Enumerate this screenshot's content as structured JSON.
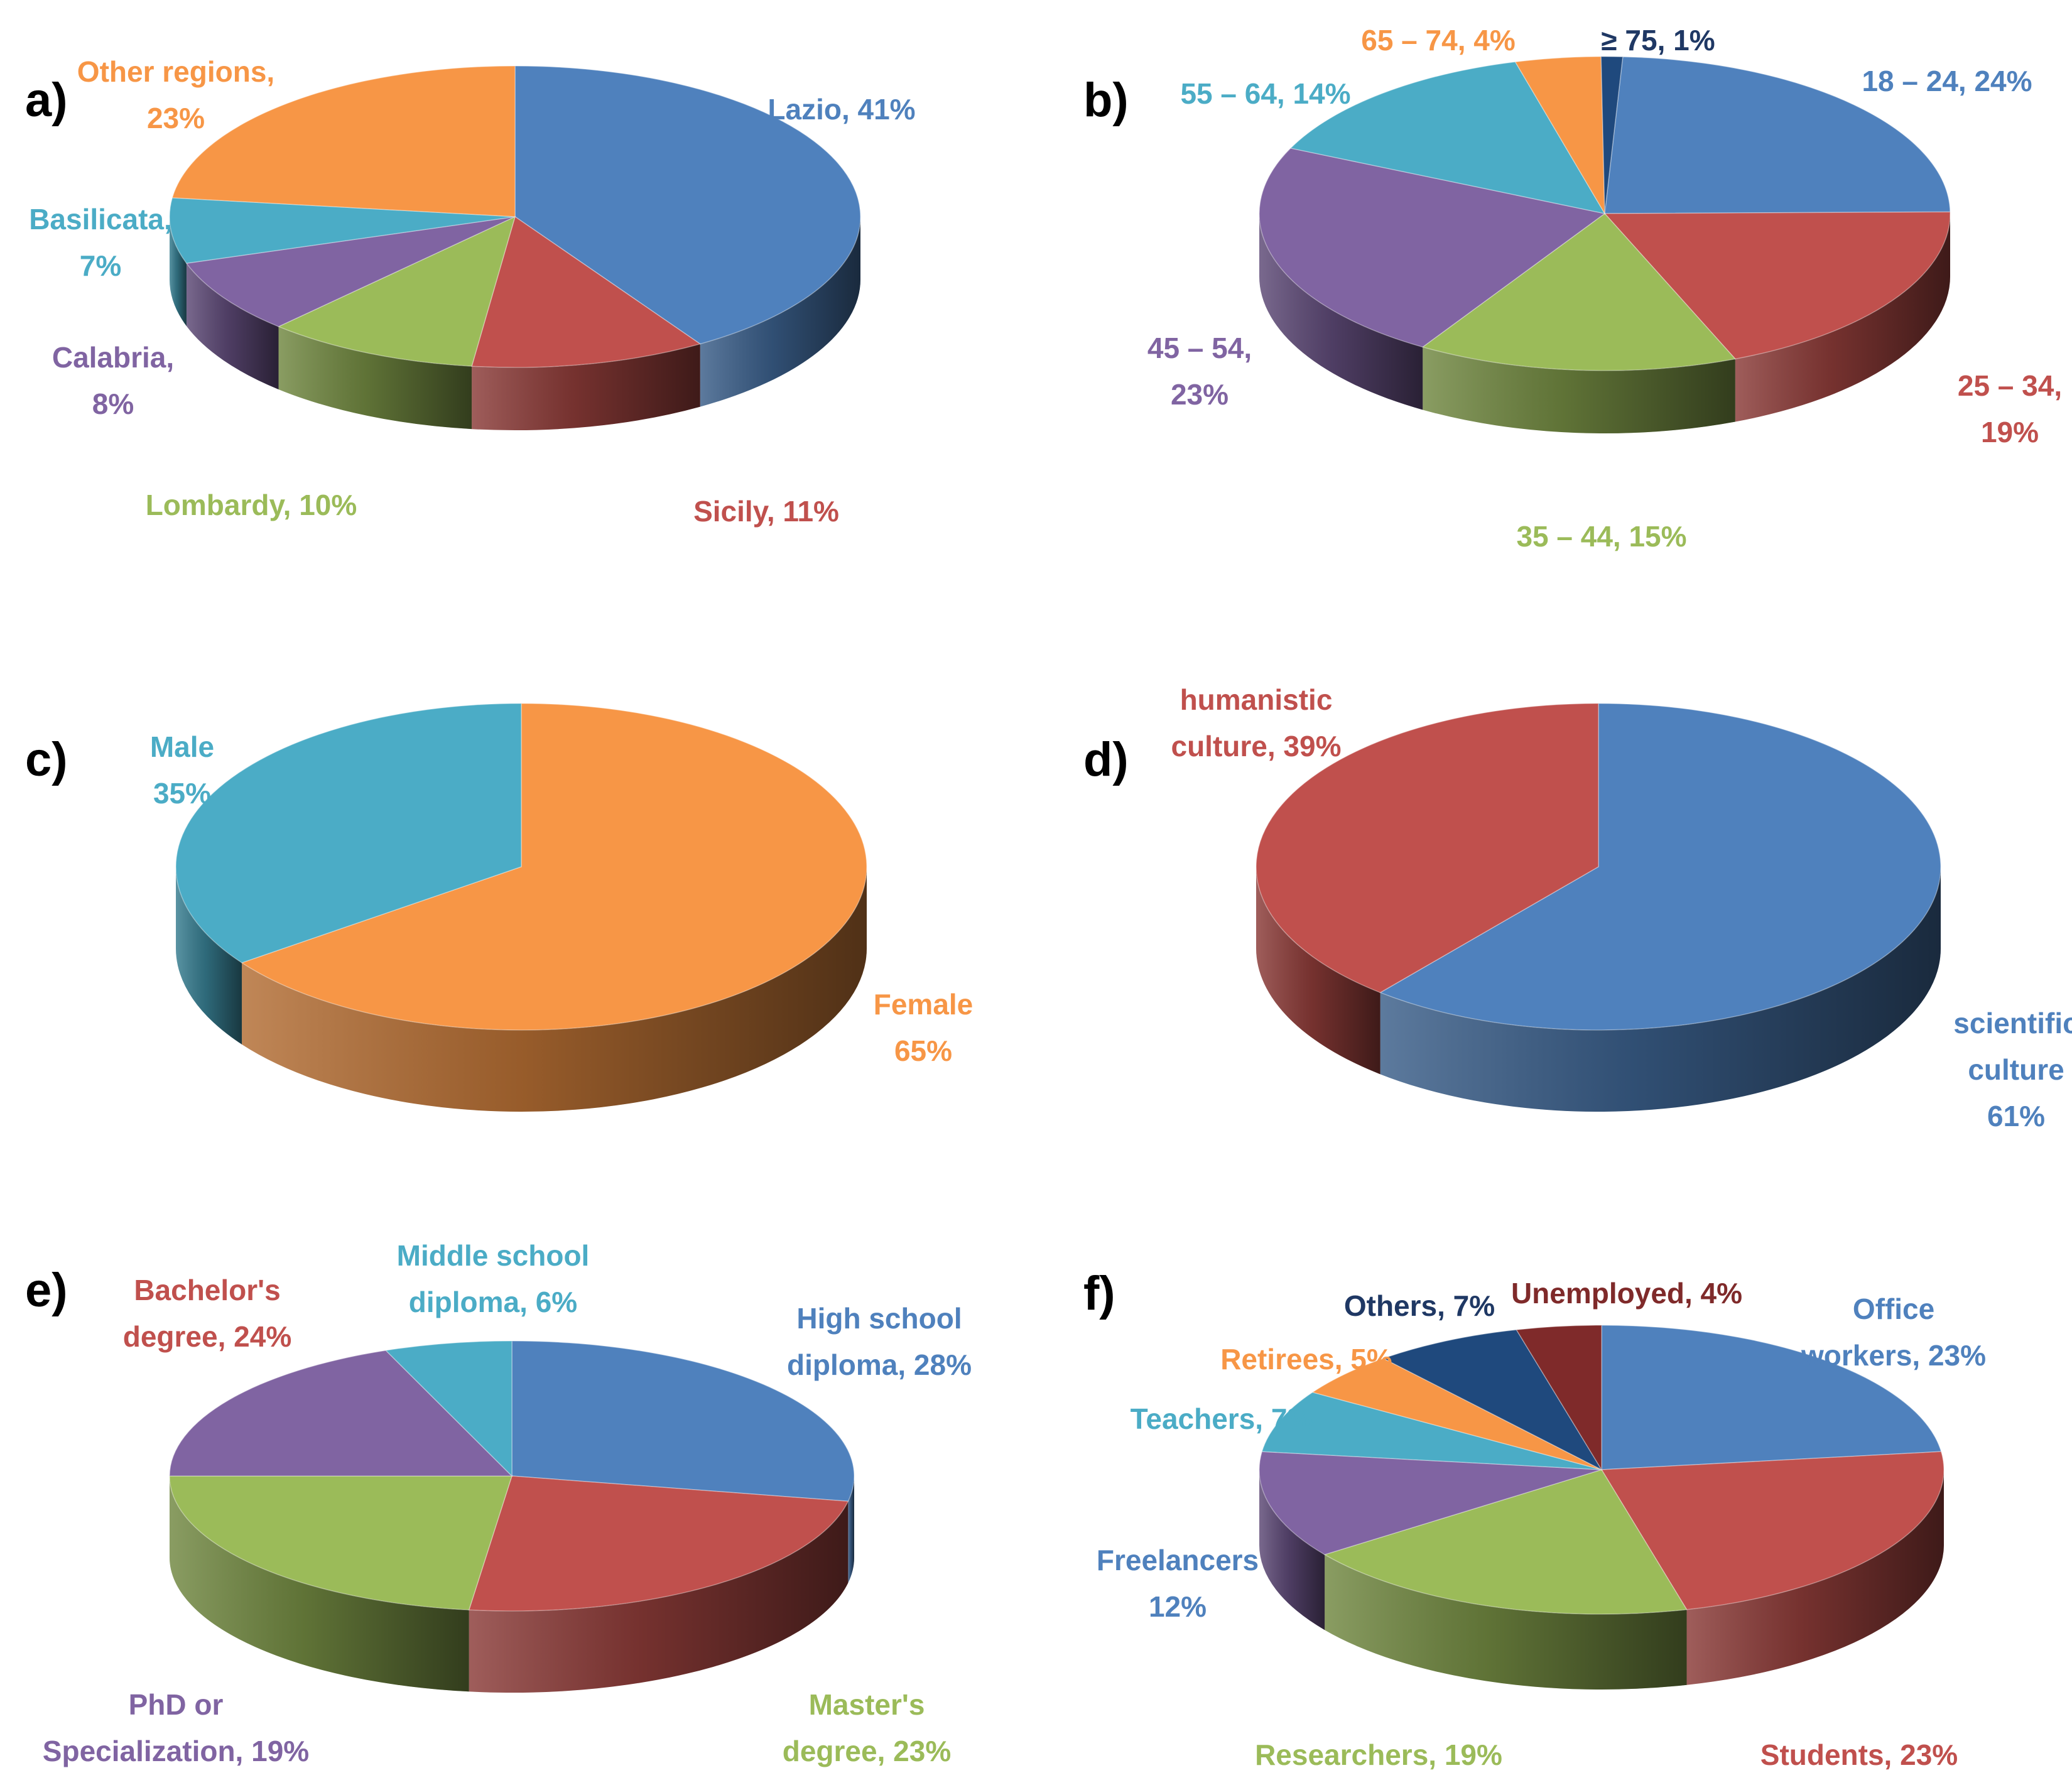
{
  "colors": {
    "blue": "#4F81BD",
    "red": "#C0504D",
    "green": "#9BBB59",
    "purple": "#8064A2",
    "cyan": "#4BACC6",
    "orange": "#F79646",
    "navy": "#1F497D",
    "darkred": "#7F2A2A"
  },
  "chart_data": [
    {
      "type": "pie",
      "panel_label": "a)",
      "slices": [
        {
          "name": "Lazio",
          "value": 41,
          "label": [
            "Lazio, 41%"
          ],
          "color": "blue"
        },
        {
          "name": "Sicily",
          "value": 11,
          "label": [
            "Sicily, 11%"
          ],
          "color": "red"
        },
        {
          "name": "Lombardy",
          "value": 10,
          "label": [
            "Lombardy, 10%"
          ],
          "color": "green"
        },
        {
          "name": "Calabria",
          "value": 8,
          "label": [
            "Calabria,",
            "8%"
          ],
          "color": "purple"
        },
        {
          "name": "Basilicata",
          "value": 7,
          "label": [
            "Basilicata,",
            "7%"
          ],
          "color": "cyan"
        },
        {
          "name": "Other regions",
          "value": 23,
          "label": [
            "Other regions,",
            "23%"
          ],
          "color": "orange"
        }
      ]
    },
    {
      "type": "pie",
      "panel_label": "b)",
      "slices": [
        {
          "name": "18 – 24",
          "value": 24,
          "label": [
            "18 – 24, 24%"
          ],
          "color": "blue"
        },
        {
          "name": "25 – 34",
          "value": 19,
          "label": [
            "25 – 34,",
            "19%"
          ],
          "color": "red"
        },
        {
          "name": "35 – 44",
          "value": 15,
          "label": [
            "35 – 44, 15%"
          ],
          "color": "green"
        },
        {
          "name": "45 – 54",
          "value": 23,
          "label": [
            "45 – 54,",
            "23%"
          ],
          "color": "purple"
        },
        {
          "name": "55 – 64",
          "value": 14,
          "label": [
            "55 – 64, 14%"
          ],
          "color": "cyan"
        },
        {
          "name": "65 – 74",
          "value": 4,
          "label": [
            "65 – 74, 4%"
          ],
          "color": "orange"
        },
        {
          "name": "≥ 75",
          "value": 1,
          "label": [
            "≥ 75, 1%"
          ],
          "color": "navy"
        }
      ]
    },
    {
      "type": "pie",
      "panel_label": "c)",
      "slices": [
        {
          "name": "Female",
          "value": 65,
          "label": [
            "Female",
            "65%"
          ],
          "color": "orange"
        },
        {
          "name": "Male",
          "value": 35,
          "label": [
            "Male",
            "35%"
          ],
          "color": "cyan"
        }
      ]
    },
    {
      "type": "pie",
      "panel_label": "d)",
      "slices": [
        {
          "name": "scientific culture",
          "value": 61,
          "label": [
            "scientific",
            "culture",
            "61%"
          ],
          "color": "blue"
        },
        {
          "name": "humanistic culture",
          "value": 39,
          "label": [
            "humanistic",
            "culture, 39%"
          ],
          "color": "red"
        }
      ]
    },
    {
      "type": "pie",
      "panel_label": "e)",
      "slices": [
        {
          "name": "High school diploma",
          "value": 28,
          "label": [
            "High school",
            "diploma, 28%"
          ],
          "color": "blue"
        },
        {
          "name": "Bachelor's degree",
          "value": 24,
          "label": [
            "Bachelor's",
            "degree, 24%"
          ],
          "color": "red"
        },
        {
          "name": "Master's degree",
          "value": 23,
          "label": [
            "Master's",
            "degree, 23%"
          ],
          "color": "green"
        },
        {
          "name": "PhD or Specialization",
          "value": 19,
          "label": [
            "PhD or",
            "Specialization, 19%"
          ],
          "color": "purple"
        },
        {
          "name": "Middle school diploma",
          "value": 6,
          "label": [
            "Middle school",
            "diploma, 6%"
          ],
          "color": "cyan"
        }
      ]
    },
    {
      "type": "pie",
      "panel_label": "f)",
      "slices": [
        {
          "name": "Office workers",
          "value": 23,
          "label": [
            "Office",
            "workers, 23%"
          ],
          "color": "blue"
        },
        {
          "name": "Students",
          "value": 23,
          "label": [
            "Students, 23%"
          ],
          "color": "red"
        },
        {
          "name": "Researchers",
          "value": 19,
          "label": [
            "Researchers, 19%"
          ],
          "color": "green"
        },
        {
          "name": "Freelancers",
          "value": 12,
          "label": [
            "Freelancers",
            "12%"
          ],
          "color": "purple",
          "label_color": "blue"
        },
        {
          "name": "Teachers",
          "value": 7,
          "label": [
            "Teachers, 7%"
          ],
          "color": "cyan"
        },
        {
          "name": "Retirees",
          "value": 5,
          "label": [
            "Retirees, 5%"
          ],
          "color": "orange"
        },
        {
          "name": "Others",
          "value": 7,
          "label": [
            "Others, 7%"
          ],
          "color": "navy"
        },
        {
          "name": "Unemployed",
          "value": 4,
          "label": [
            "Unemployed, 4%"
          ],
          "color": "darkred"
        }
      ]
    }
  ]
}
